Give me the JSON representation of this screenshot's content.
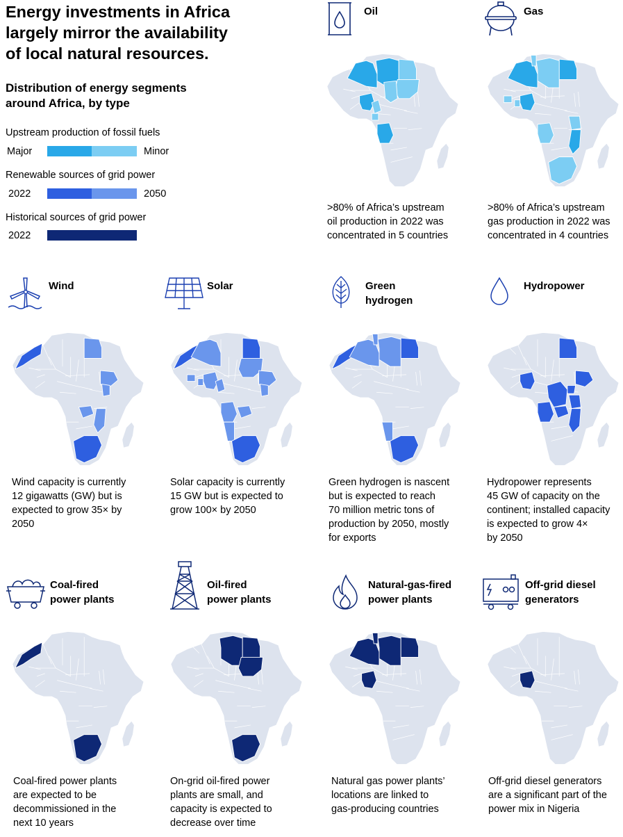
{
  "header": {
    "title_lines": [
      "Energy investments in Africa",
      "largely mirror the availability",
      "of local natural resources."
    ],
    "subtitle_lines": [
      "Distribution of energy segments",
      "around Africa, by type"
    ]
  },
  "legend": {
    "fossil": {
      "heading": "Upstream production of fossil fuels",
      "left_label": "Major",
      "right_label": "Minor",
      "colors": [
        "#29A8E8",
        "#7CCDF3"
      ]
    },
    "renewable": {
      "heading": "Renewable sources of grid power",
      "left_label": "2022",
      "right_label": "2050",
      "colors": [
        "#2E5FE0",
        "#6A96EC"
      ]
    },
    "historical": {
      "heading": "Historical sources of grid power",
      "left_label": "2022",
      "colors": [
        "#0E2875"
      ]
    }
  },
  "colors": {
    "base": "#DDE3EE",
    "border": "#FFFFFF",
    "icon": "#0E2875"
  },
  "panels": [
    {
      "id": "oil",
      "icon": "oil-drum-icon",
      "title_lines": [
        "Oil"
      ],
      "caption_lines": [
        ">80% of Africa’s upstream",
        "oil production in 2022 was",
        "concentrated in 5 countries"
      ]
    },
    {
      "id": "gas",
      "icon": "gas-tank-icon",
      "title_lines": [
        "Gas"
      ],
      "caption_lines": [
        ">80% of Africa’s upstream",
        "gas production in 2022 was",
        "concentrated in 4 countries"
      ]
    },
    {
      "id": "wind",
      "icon": "wind-turbine-icon",
      "title_lines": [
        "Wind"
      ],
      "caption_lines": [
        "Wind capacity is currently",
        "12 gigawatts (GW) but is",
        "expected to grow 35× by",
        "2050"
      ]
    },
    {
      "id": "solar",
      "icon": "solar-panel-icon",
      "title_lines": [
        "Solar"
      ],
      "caption_lines": [
        "Solar capacity is currently",
        "15 GW but is expected to",
        "grow 100× by 2050"
      ]
    },
    {
      "id": "hydrogen",
      "icon": "leaf-icon",
      "title_lines": [
        "Green",
        "hydrogen"
      ],
      "caption_lines": [
        "Green hydrogen is nascent",
        "but is expected to reach",
        "70 million metric tons of",
        "production by 2050, mostly",
        "for exports"
      ]
    },
    {
      "id": "hydro",
      "icon": "water-drop-icon",
      "title_lines": [
        "Hydropower"
      ],
      "caption_lines": [
        "Hydropower represents",
        "45 GW of capacity on the",
        "continent; installed capacity",
        "is expected to grow 4×",
        "by 2050"
      ]
    },
    {
      "id": "coal",
      "icon": "coal-cart-icon",
      "title_lines": [
        "Coal-fired",
        "power plants"
      ],
      "caption_lines": [
        "Coal-fired power plants",
        "are expected to be",
        "decommissioned in the",
        "next 10 years"
      ]
    },
    {
      "id": "oilfired",
      "icon": "oil-derrick-icon",
      "title_lines": [
        "Oil-fired",
        "power plants"
      ],
      "caption_lines": [
        "On-grid oil-fired power",
        "plants are small, and",
        "capacity is expected to",
        "decrease over time"
      ]
    },
    {
      "id": "natgas",
      "icon": "flame-icon",
      "title_lines": [
        "Natural-gas-fired",
        "power plants"
      ],
      "caption_lines": [
        "Natural gas power plants’",
        "locations are linked to",
        "gas-producing countries"
      ]
    },
    {
      "id": "diesel",
      "icon": "generator-icon",
      "title_lines": [
        "Off-grid diesel",
        "generators"
      ],
      "caption_lines": [
        "Off-grid diesel generators",
        "are a significant part of the",
        "power mix in Nigeria"
      ]
    }
  ]
}
